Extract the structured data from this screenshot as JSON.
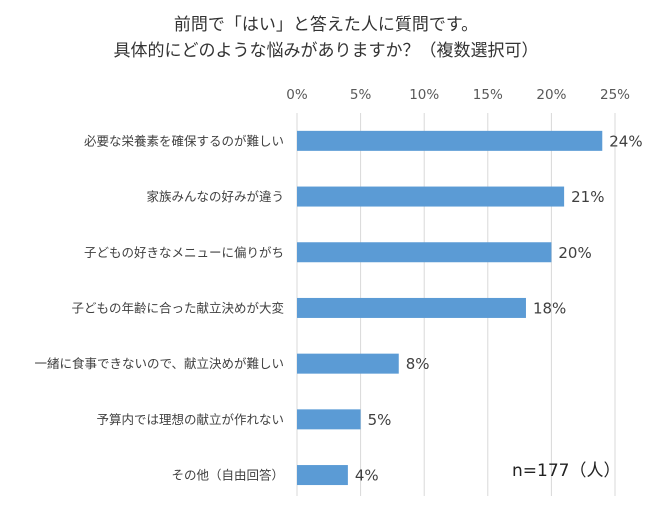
{
  "title": {
    "line1": "前問で「はい」と答えた人に質問です。",
    "line2": "具体的にどのような悩みがありますか？（複数選択可）"
  },
  "note": "n=177（人）",
  "chart_data": {
    "type": "bar",
    "orientation": "horizontal",
    "categories": [
      "必要な栄養素を確保するのが難しい",
      "家族みんなの好みが違う",
      "子どもの好きなメニューに偏りがち",
      "子どもの年齢に合った献立決めが大変",
      "一緒に食事できないので、献立決めが難しい",
      "予算内では理想の献立が作れない",
      "その他（自由回答）"
    ],
    "values": [
      24,
      21,
      20,
      18,
      8,
      5,
      4
    ],
    "data_labels": [
      "24%",
      "21%",
      "20%",
      "18%",
      "8%",
      "5%",
      "4%"
    ],
    "xlim": [
      0,
      25
    ],
    "xticks": [
      0,
      5,
      10,
      15,
      20,
      25
    ],
    "xtick_labels": [
      "0%",
      "5%",
      "10%",
      "15%",
      "20%",
      "25%"
    ],
    "x_axis_position": "top",
    "grid": true,
    "bar_color": "#5b9bd5"
  }
}
